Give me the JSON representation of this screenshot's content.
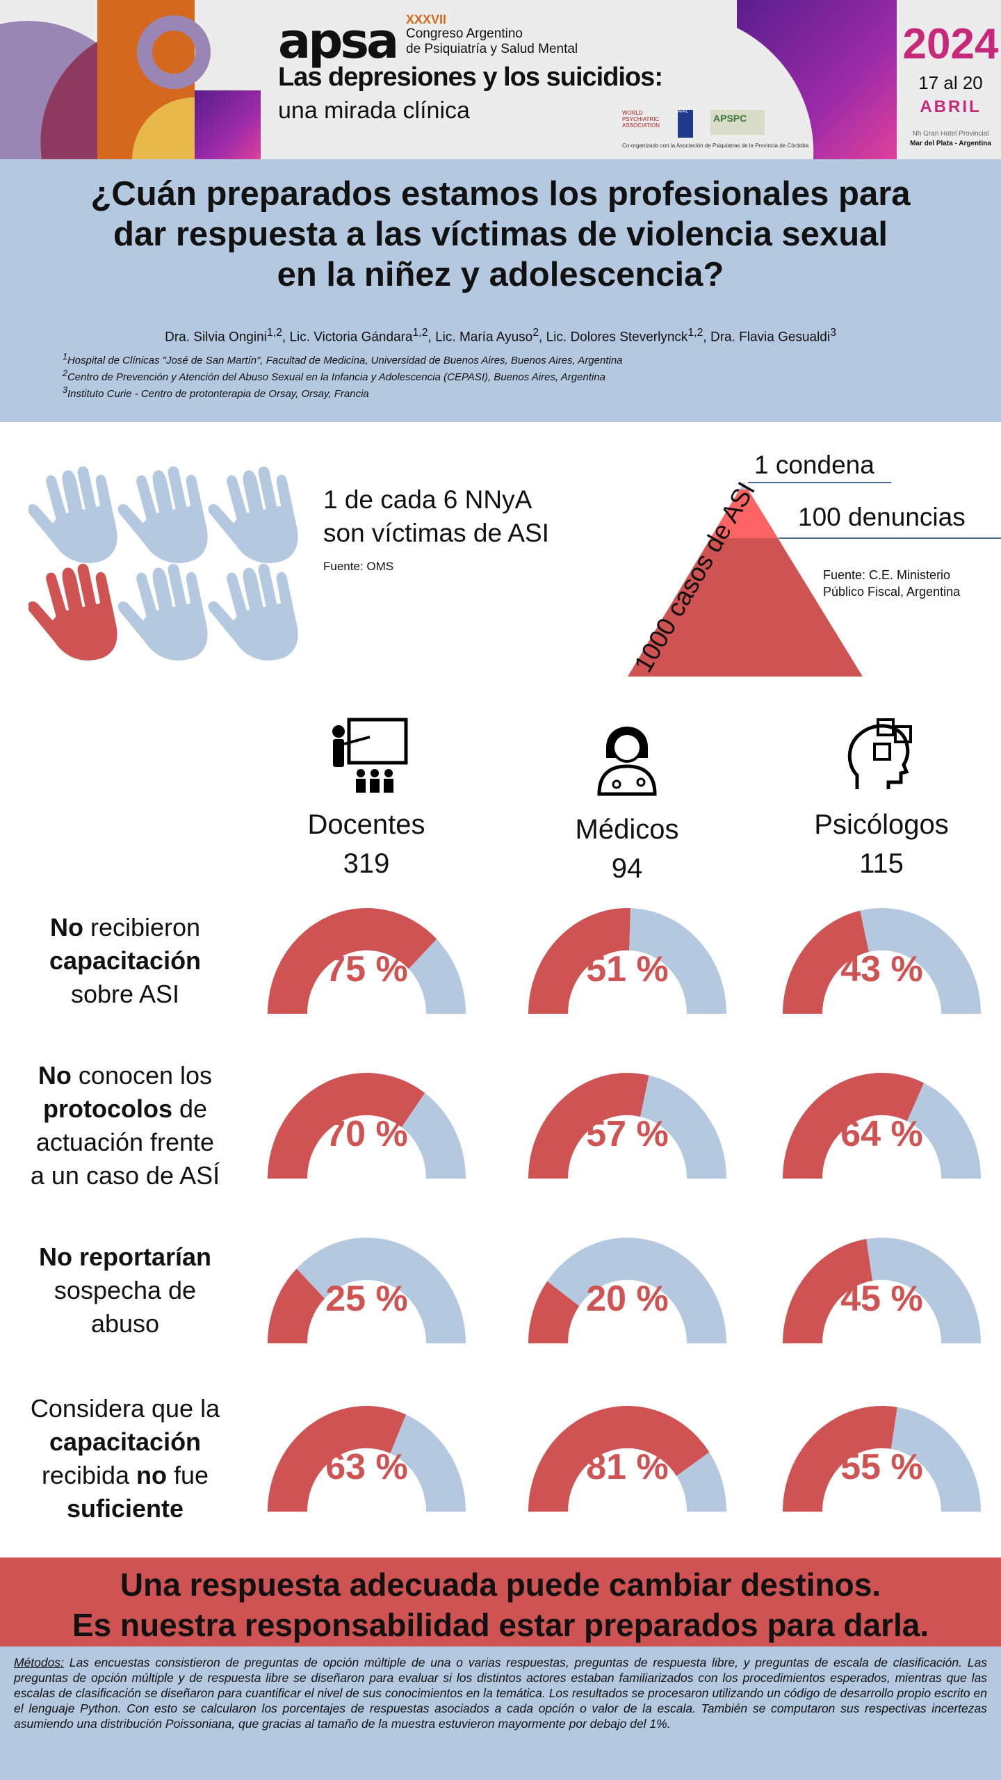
{
  "banner": {
    "edition": "XXXVII",
    "logo": "apsa",
    "congress_line1": "Congreso Argentino",
    "congress_line2": "de Psiquiatría y Salud Mental",
    "theme_line1": "Las depresiones y los suicidios:",
    "theme_line2": "una mirada clínica",
    "year": "2024",
    "dates": "17 al 20",
    "month": "ABRIL",
    "venue1": "Nh Gran Hotel Provincial",
    "venue2": "Mar del Plata - Argentina",
    "coorg": "Co-organizado con la Asociación de Psiquiatras de la Provincia de Córdoba",
    "partner_logos": [
      "WORLD PSYCHIATRIC ASSOCIATION",
      "APAL",
      "APSPC"
    ]
  },
  "title": {
    "line1": "¿Cuán preparados estamos los profesionales para",
    "line2": "dar respuesta a las víctimas de violencia sexual",
    "line3": "en la niñez y adolescencia?"
  },
  "authors": [
    {
      "name": "Dra. Silvia Ongini",
      "sup": "1,2"
    },
    {
      "name": "Lic. Victoria Gándara",
      "sup": "1,2"
    },
    {
      "name": "Lic. María Ayuso",
      "sup": "2"
    },
    {
      "name": "Lic. Dolores Steverlynck",
      "sup": "1,2"
    },
    {
      "name": "Dra. Flavia Gesualdi",
      "sup": "3"
    }
  ],
  "affiliations": [
    {
      "n": "1",
      "text": "Hospital de Clínicas \"José de San Martín\", Facultad de Medicina, Universidad de Buenos Aires, Buenos Aires, Argentina"
    },
    {
      "n": "2",
      "text": "Centro de Prevención y Atención del Abuso Sexual en la Infancia y Adolescencia (CEPASI), Buenos Aires, Argentina"
    },
    {
      "n": "3",
      "text": "Instituto Curie - Centro de protonterapia de Orsay, Orsay, Francia"
    }
  ],
  "stat": {
    "line1": "1 de cada 6 NNyA",
    "line2": "son víctimas de ASI",
    "source": "Fuente: OMS",
    "hands_total": 6,
    "hands_highlighted": 1
  },
  "pyramid": {
    "top": "1 condena",
    "middle": "100 denuncias",
    "side": "1000 casos de ASI",
    "source1": "Fuente: C.E. Ministerio",
    "source2": "Público Fiscal, Argentina"
  },
  "groups": [
    {
      "name": "Docentes",
      "n": "319",
      "icon": "teacher-icon"
    },
    {
      "name": "Médicos",
      "n": "94",
      "icon": "doctor-icon"
    },
    {
      "name": "Psicólogos",
      "n": "115",
      "icon": "brain-puzzle-icon"
    }
  ],
  "rows": [
    {
      "label": [
        [
          [
            "No",
            true
          ],
          [
            " recibieron",
            false
          ]
        ],
        [
          [
            "capacitación",
            true
          ]
        ],
        [
          [
            "sobre ASI",
            false
          ]
        ]
      ],
      "values": [
        75,
        51,
        43
      ]
    },
    {
      "label": [
        [
          [
            "No",
            true
          ],
          [
            " conocen los",
            false
          ]
        ],
        [
          [
            "protocolos",
            true
          ],
          [
            " de",
            false
          ]
        ],
        [
          [
            "actuación frente",
            false
          ]
        ],
        [
          [
            "a un caso de ASÍ",
            false
          ]
        ]
      ],
      "values": [
        70,
        57,
        64
      ]
    },
    {
      "label": [
        [
          [
            "No reportarían",
            true
          ]
        ],
        [
          [
            "sospecha de",
            false
          ]
        ],
        [
          [
            "abuso",
            false
          ]
        ]
      ],
      "values": [
        25,
        20,
        45
      ]
    },
    {
      "label": [
        [
          [
            "Considera que la",
            false
          ]
        ],
        [
          [
            "capacitación",
            true
          ]
        ],
        [
          [
            "recibida ",
            false
          ],
          [
            "no",
            true
          ],
          [
            " fue",
            false
          ]
        ],
        [
          [
            "suficiente",
            true
          ]
        ]
      ],
      "values": [
        63,
        81,
        55
      ]
    }
  ],
  "conclusion": {
    "line1": "Una respuesta adecuada puede cambiar destinos.",
    "line2": "Es nuestra responsabilidad estar preparados para darla."
  },
  "methods": {
    "label": "Métodos:",
    "text": " Las encuestas consistieron de preguntas de opción múltiple de una o varias respuestas, preguntas de respuesta libre, y preguntas de escala de clasificación. Las preguntas de opción múltiple y de respuesta libre se diseñaron para evaluar si los distintos actores estaban familiarizados con los procedimientos esperados, mientras que las escalas de clasificación se diseñaron para cuantificar el nivel de sus conocimientos en la temática. Los resultados se procesaron utilizando un código de desarrollo propio escrito en el lenguaje Python. Con esto se calcularon los porcentajes de respuestas asociados a cada opción o valor de la escala. También se computaron sus respectivas incertezas asumiendo una distribución Poissoniana, que gracias al tamaño de la muestra estuvieron mayormente por debajo del 1%."
  },
  "colors": {
    "red": "#cf5352",
    "blue": "#b4c8e0",
    "magenta": "#c8287a"
  }
}
